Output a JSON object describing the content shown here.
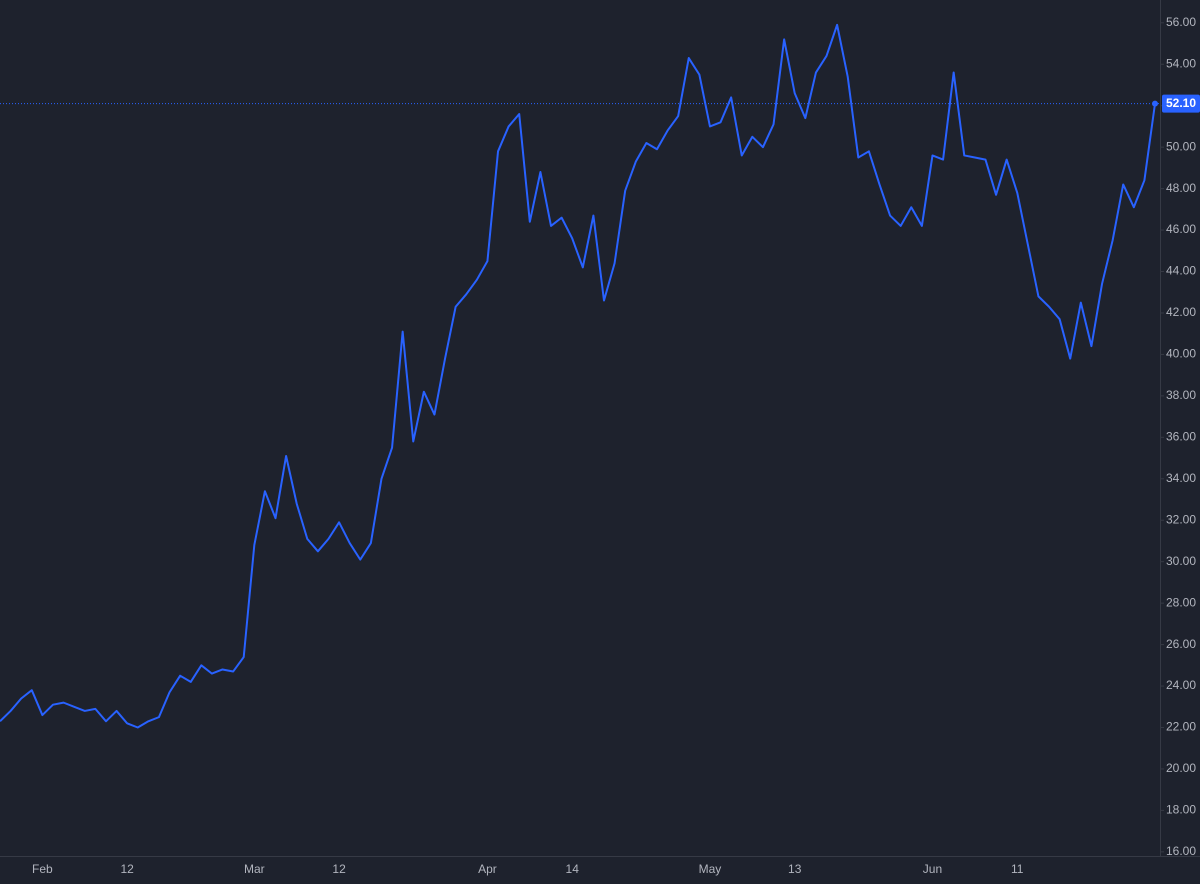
{
  "chart_data": {
    "type": "line",
    "categories": [
      null,
      null,
      null,
      null,
      "Feb",
      null,
      null,
      null,
      null,
      null,
      null,
      null,
      "12",
      null,
      null,
      null,
      null,
      null,
      null,
      null,
      null,
      null,
      null,
      null,
      "Mar",
      null,
      null,
      null,
      null,
      null,
      null,
      null,
      "12",
      null,
      null,
      null,
      null,
      null,
      null,
      null,
      null,
      null,
      null,
      null,
      null,
      null,
      "Apr",
      null,
      null,
      null,
      null,
      null,
      null,
      null,
      "14",
      null,
      null,
      null,
      null,
      null,
      null,
      null,
      null,
      null,
      null,
      null,
      null,
      "May",
      null,
      null,
      null,
      null,
      null,
      null,
      null,
      "13",
      null,
      null,
      null,
      null,
      null,
      null,
      null,
      null,
      null,
      null,
      null,
      null,
      "Jun",
      null,
      null,
      null,
      null,
      null,
      null,
      null,
      "11",
      null,
      null,
      null,
      null,
      null,
      null,
      null,
      null,
      null,
      null,
      null,
      null,
      null
    ],
    "series": [
      {
        "color": "#2962ff",
        "values": [
          22.3,
          22.8,
          23.4,
          23.8,
          22.6,
          23.1,
          23.2,
          23.0,
          22.8,
          22.9,
          22.3,
          22.8,
          22.2,
          22.0,
          22.3,
          22.5,
          23.7,
          24.5,
          24.2,
          25.0,
          24.6,
          24.8,
          24.7,
          25.4,
          30.8,
          33.4,
          32.1,
          35.1,
          32.8,
          31.1,
          30.5,
          31.1,
          31.9,
          30.9,
          30.1,
          30.9,
          34.0,
          35.5,
          41.1,
          35.8,
          38.2,
          37.1,
          39.8,
          42.3,
          42.9,
          43.6,
          44.5,
          49.8,
          51.0,
          51.6,
          46.4,
          48.8,
          46.2,
          46.6,
          45.6,
          44.2,
          46.7,
          42.6,
          44.4,
          47.9,
          49.3,
          50.2,
          49.9,
          50.8,
          51.5,
          54.3,
          53.5,
          51.0,
          51.2,
          52.4,
          49.6,
          50.5,
          50.0,
          51.1,
          55.2,
          52.6,
          51.4,
          53.6,
          54.4,
          55.9,
          53.4,
          49.5,
          49.8,
          48.2,
          46.7,
          46.2,
          47.1,
          46.2,
          49.6,
          49.4,
          53.6,
          49.6,
          49.5,
          49.4,
          47.7,
          49.4,
          47.8,
          45.3,
          42.8,
          42.3,
          41.7,
          39.8,
          42.5,
          40.4,
          43.4,
          45.5,
          48.2,
          47.1,
          48.4,
          52.1
        ],
        "value_labels": [
          null,
          null,
          null,
          null,
          null,
          null,
          null,
          null,
          null,
          null,
          null,
          null,
          null,
          null,
          null,
          null,
          null,
          null,
          null,
          null,
          null,
          null,
          null,
          null,
          null,
          null,
          null,
          null,
          null,
          null,
          null,
          null,
          null,
          null,
          null,
          null,
          null,
          null,
          null,
          null,
          null,
          null,
          null,
          null,
          null,
          null,
          null,
          null,
          null,
          null,
          null,
          null,
          null,
          null,
          null,
          null,
          null,
          null,
          null,
          null,
          null,
          null,
          null,
          null,
          null,
          null,
          null,
          null,
          null,
          null,
          null,
          null,
          null,
          null,
          null,
          null,
          null,
          null,
          null,
          null,
          null,
          null,
          null,
          null,
          null,
          null,
          null,
          null,
          null,
          null,
          null,
          null,
          null,
          null,
          null,
          null,
          null,
          null,
          null,
          null,
          null,
          null,
          null,
          null,
          null,
          null,
          null,
          null,
          null,
          "52.10"
        ]
      }
    ],
    "ylim": [
      15.8,
      57.1
    ],
    "yticks": [
      {
        "value": 16,
        "label": "16.00"
      },
      {
        "value": 18,
        "label": "18.00"
      },
      {
        "value": 20,
        "label": "20.00"
      },
      {
        "value": 22,
        "label": "22.00"
      },
      {
        "value": 24,
        "label": "24.00"
      },
      {
        "value": 26,
        "label": "26.00"
      },
      {
        "value": 28,
        "label": "28.00"
      },
      {
        "value": 30,
        "label": "30.00"
      },
      {
        "value": 32,
        "label": "32.00"
      },
      {
        "value": 34,
        "label": "34.00"
      },
      {
        "value": 36,
        "label": "36.00"
      },
      {
        "value": 38,
        "label": "38.00"
      },
      {
        "value": 40,
        "label": "40.00"
      },
      {
        "value": 42,
        "label": "42.00"
      },
      {
        "value": 44,
        "label": "44.00"
      },
      {
        "value": 46,
        "label": "46.00"
      },
      {
        "value": 48,
        "label": "48.00"
      },
      {
        "value": 50,
        "label": "50.00"
      },
      {
        "value": 52,
        "label": "52.00"
      },
      {
        "value": 54,
        "label": "54.00"
      },
      {
        "value": 56,
        "label": "56.00"
      }
    ],
    "grid": false
  }
}
